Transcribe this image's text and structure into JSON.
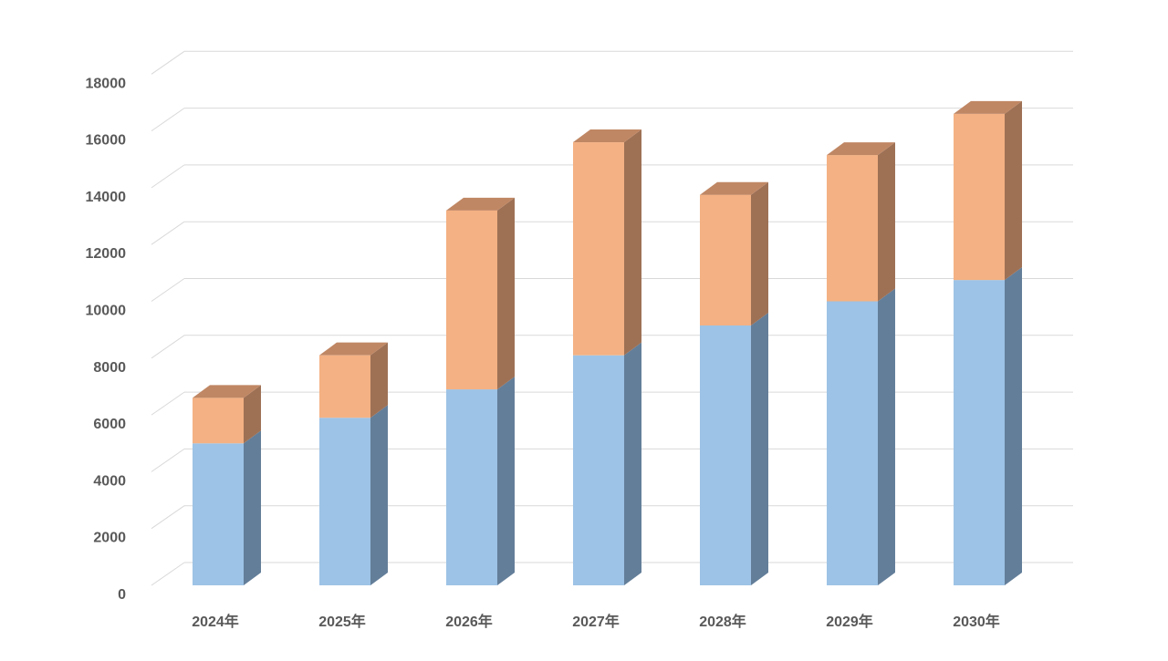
{
  "chart_data": {
    "type": "bar",
    "stacked": true,
    "three_d": true,
    "categories": [
      "2024年",
      "2025年",
      "2026年",
      "2027年",
      "2028年",
      "2029年",
      "2030年"
    ],
    "series": [
      {
        "values": [
          5000,
          5900,
          6900,
          8100,
          9150,
          10000,
          10750
        ]
      },
      {
        "values": [
          1600,
          2200,
          6300,
          7500,
          4600,
          5150,
          5850
        ]
      }
    ],
    "ylim": [
      0,
      18000
    ],
    "yticks": [
      0,
      2000,
      4000,
      6000,
      8000,
      10000,
      12000,
      14000,
      16000,
      18000
    ],
    "grid": true,
    "legend": false,
    "colors": {
      "s0_front": "#9dc3e6",
      "s0_side": "#637e99",
      "s0_top": "#a3c0de",
      "s1_front": "#f4b183",
      "s1_side": "#9e7155",
      "s1_top": "#c08764",
      "grid": "#d9d9d9",
      "text": "#595959"
    }
  }
}
